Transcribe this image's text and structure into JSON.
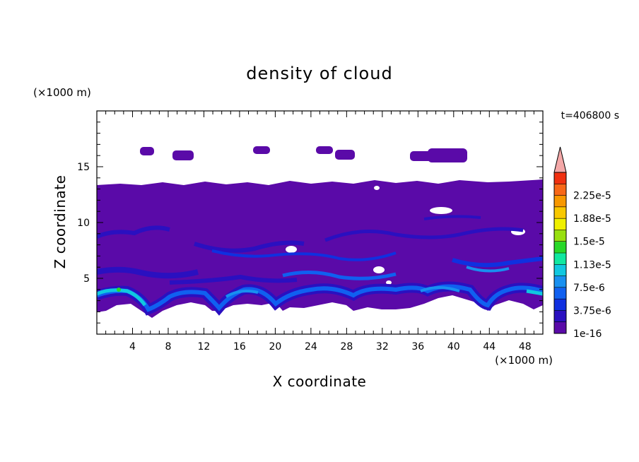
{
  "chart_data": {
    "type": "heatmap",
    "title": "density of cloud",
    "xlabel": "X coordinate",
    "ylabel": "Z coordinate",
    "x_unit": "(×1000 m)",
    "y_unit": "(×1000 m)",
    "time_label": "t=406800 s",
    "xlim": [
      0,
      50
    ],
    "ylim": [
      0,
      20
    ],
    "x_ticks": [
      4,
      8,
      12,
      16,
      20,
      24,
      28,
      32,
      36,
      40,
      44,
      48
    ],
    "y_ticks": [
      5,
      10,
      15
    ],
    "colorbar": {
      "labels": [
        "1e-16",
        "3.75e-6",
        "7.5e-6",
        "1.13e-5",
        "1.5e-5",
        "1.88e-5",
        "2.25e-5"
      ],
      "colors": [
        "#5a0aa8",
        "#2a10c0",
        "#1030e0",
        "#1060f0",
        "#1890f0",
        "#10c8e0",
        "#10e8a0",
        "#28d828",
        "#98e010",
        "#f0f000",
        "#f8c800",
        "#f89800",
        "#f86818",
        "#f03010"
      ],
      "extend_color": "#f4a8a8"
    },
    "background_color": "#5a0aa8"
  }
}
